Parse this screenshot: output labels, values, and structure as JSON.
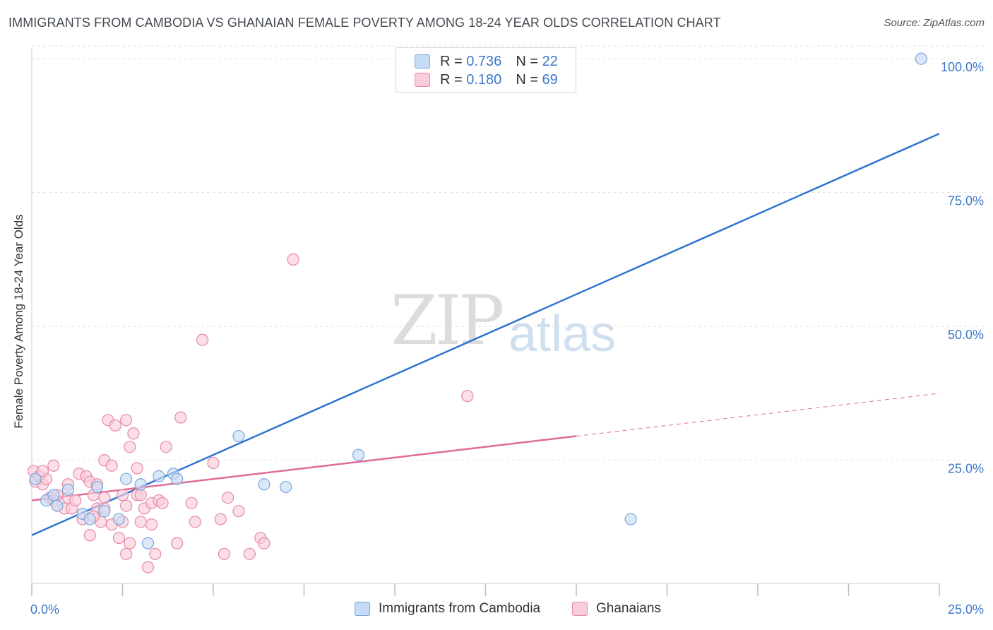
{
  "title": "IMMIGRANTS FROM CAMBODIA VS GHANAIAN FEMALE POVERTY AMONG 18-24 YEAR OLDS CORRELATION CHART",
  "source": "Source: ZipAtlas.com",
  "watermark": {
    "zip": "ZIP",
    "atlas": "atlas"
  },
  "legend": {
    "rows": [
      {
        "r_label": "R =",
        "r_value": "0.736",
        "n_label": "N =",
        "n_value": "22",
        "color": "#a9c8f0",
        "border": "#6f9fd8"
      },
      {
        "r_label": "R =",
        "r_value": "0.180",
        "n_label": "N =",
        "n_value": "69",
        "color": "#f8c2d2",
        "border": "#e58aa8"
      }
    ]
  },
  "bottom_legend": [
    {
      "label": "Immigrants from Cambodia",
      "color": "#c6dbf5",
      "border": "#7ba6db"
    },
    {
      "label": "Ghanaians",
      "color": "#f9ccd9",
      "border": "#e58aa8"
    }
  ],
  "chart_data": {
    "type": "scatter",
    "title": "IMMIGRANTS FROM CAMBODIA VS GHANAIAN FEMALE POVERTY AMONG 18-24 YEAR OLDS CORRELATION CHART",
    "xlabel": "",
    "ylabel": "Female Poverty Among 18-24 Year Olds",
    "xlim": [
      0,
      25
    ],
    "ylim": [
      2,
      102
    ],
    "x_tick_labels": [
      {
        "value": 0,
        "label": "0.0%"
      },
      {
        "value": 25,
        "label": "25.0%"
      }
    ],
    "x_tick_marks": [
      0,
      2.5,
      5,
      7.5,
      10,
      12.5,
      15,
      17.5,
      20,
      22.5,
      25
    ],
    "y_ticks": [
      {
        "value": 25,
        "label": "25.0%"
      },
      {
        "value": 50,
        "label": "50.0%"
      },
      {
        "value": 75,
        "label": "75.0%"
      },
      {
        "value": 100,
        "label": "100.0%"
      }
    ],
    "grid": true,
    "series": [
      {
        "name": "Immigrants from Cambodia",
        "fill": "#c6dbf5",
        "stroke": "#7ba6db",
        "line_color": "#2f74d0",
        "trend": {
          "x": [
            0,
            25
          ],
          "y": [
            11.0,
            86.0
          ],
          "dashed_from": null
        },
        "points": [
          [
            0.1,
            21.5
          ],
          [
            0.4,
            17.5
          ],
          [
            0.6,
            18.5
          ],
          [
            0.7,
            16.5
          ],
          [
            1.0,
            19.5
          ],
          [
            1.4,
            15.0
          ],
          [
            1.6,
            14.0
          ],
          [
            1.8,
            20.0
          ],
          [
            2.0,
            15.5
          ],
          [
            2.4,
            14.0
          ],
          [
            2.6,
            21.5
          ],
          [
            3.0,
            20.5
          ],
          [
            3.2,
            9.5
          ],
          [
            3.5,
            22.0
          ],
          [
            3.9,
            22.5
          ],
          [
            4.0,
            21.5
          ],
          [
            5.7,
            29.5
          ],
          [
            6.4,
            20.5
          ],
          [
            7.0,
            20.0
          ],
          [
            9.0,
            26.0
          ],
          [
            16.5,
            14.0
          ],
          [
            24.5,
            100.0
          ]
        ]
      },
      {
        "name": "Ghanaians",
        "fill": "#f9ccd9",
        "stroke": "#e58aa8",
        "line_color": "#e06b97",
        "trend": {
          "x": [
            0,
            25
          ],
          "y": [
            17.5,
            37.5
          ],
          "dashed_from": 15
        },
        "points": [
          [
            0.05,
            23.0
          ],
          [
            0.1,
            21.0
          ],
          [
            0.2,
            22.0
          ],
          [
            0.3,
            20.5
          ],
          [
            0.4,
            21.5
          ],
          [
            0.5,
            18.0
          ],
          [
            0.6,
            17.5
          ],
          [
            0.7,
            16.5
          ],
          [
            0.7,
            18.5
          ],
          [
            0.9,
            16.0
          ],
          [
            1.0,
            18.0
          ],
          [
            0.6,
            24.0
          ],
          [
            1.0,
            20.5
          ],
          [
            1.1,
            16.0
          ],
          [
            1.2,
            17.5
          ],
          [
            1.3,
            22.5
          ],
          [
            1.4,
            14.0
          ],
          [
            1.5,
            22.0
          ],
          [
            1.6,
            21.0
          ],
          [
            1.6,
            11.0
          ],
          [
            1.7,
            18.5
          ],
          [
            1.8,
            20.5
          ],
          [
            1.8,
            16.0
          ],
          [
            1.9,
            13.5
          ],
          [
            2.0,
            18.0
          ],
          [
            2.0,
            25.0
          ],
          [
            2.1,
            32.5
          ],
          [
            2.2,
            24.0
          ],
          [
            2.2,
            13.0
          ],
          [
            2.3,
            31.5
          ],
          [
            2.4,
            10.5
          ],
          [
            2.5,
            18.5
          ],
          [
            2.5,
            13.5
          ],
          [
            2.6,
            16.5
          ],
          [
            2.6,
            7.5
          ],
          [
            2.6,
            32.5
          ],
          [
            2.7,
            27.5
          ],
          [
            2.7,
            9.5
          ],
          [
            2.8,
            30.0
          ],
          [
            2.9,
            23.5
          ],
          [
            2.9,
            18.5
          ],
          [
            3.0,
            13.5
          ],
          [
            3.0,
            18.5
          ],
          [
            3.1,
            16.0
          ],
          [
            3.2,
            5.0
          ],
          [
            3.3,
            13.0
          ],
          [
            3.3,
            17.0
          ],
          [
            3.4,
            7.5
          ],
          [
            3.5,
            17.5
          ],
          [
            3.6,
            17.0
          ],
          [
            3.7,
            27.5
          ],
          [
            4.0,
            9.5
          ],
          [
            4.1,
            33.0
          ],
          [
            4.5,
            13.5
          ],
          [
            4.7,
            47.5
          ],
          [
            5.0,
            24.5
          ],
          [
            5.2,
            14.0
          ],
          [
            5.3,
            7.5
          ],
          [
            5.4,
            18.0
          ],
          [
            5.7,
            15.5
          ],
          [
            6.0,
            7.5
          ],
          [
            6.3,
            10.5
          ],
          [
            6.4,
            9.5
          ],
          [
            7.2,
            62.5
          ],
          [
            12.0,
            37.0
          ],
          [
            4.4,
            17.0
          ],
          [
            1.7,
            14.5
          ],
          [
            0.3,
            23.0
          ],
          [
            2.0,
            16.0
          ]
        ]
      }
    ]
  }
}
